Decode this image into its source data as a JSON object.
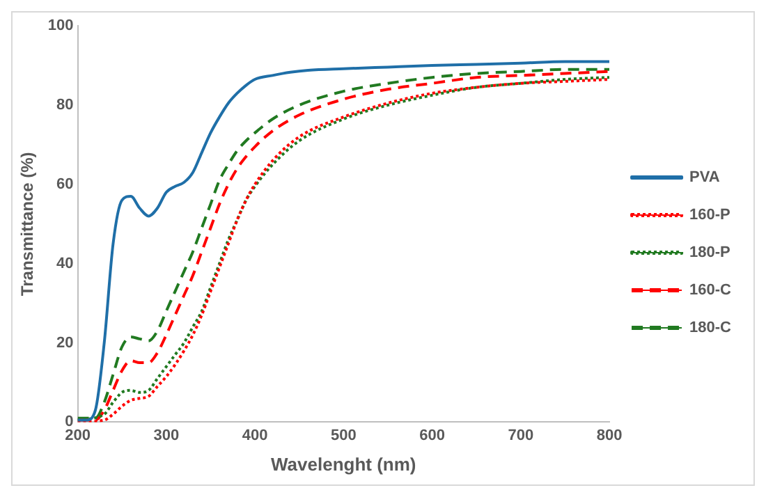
{
  "chart_data": {
    "type": "line",
    "xlabel": "Wavelenght (nm)",
    "ylabel": "Transmittance (%)",
    "xlim": [
      200,
      800
    ],
    "xticks": [
      200,
      300,
      400,
      500,
      600,
      700,
      800
    ],
    "ylim": [
      0,
      100
    ],
    "yticks": [
      0,
      20,
      40,
      60,
      80,
      100
    ],
    "grid": false,
    "legend": "right",
    "marker": "none",
    "series": [
      {
        "name": "PVA",
        "color": "#1f6fa8",
        "line_style": "solid",
        "x": [
          200,
          210,
          220,
          230,
          240,
          250,
          260,
          270,
          280,
          290,
          300,
          310,
          320,
          330,
          340,
          350,
          360,
          370,
          380,
          390,
          400,
          420,
          440,
          460,
          500,
          550,
          600,
          650,
          700,
          750,
          800
        ],
        "values": [
          0.5,
          0.5,
          3,
          20,
          45,
          56,
          57,
          54,
          52,
          54,
          58,
          59.5,
          60.5,
          63,
          68,
          73,
          77,
          80.5,
          83,
          85,
          86.5,
          87.5,
          88.3,
          88.8,
          89.2,
          89.6,
          90,
          90.3,
          90.6,
          91,
          91
        ]
      },
      {
        "name": "160-P",
        "color": "#ff0000",
        "line_style": "dotted",
        "x": [
          200,
          230,
          240,
          250,
          260,
          270,
          280,
          290,
          300,
          310,
          320,
          330,
          340,
          350,
          360,
          370,
          380,
          390,
          400,
          420,
          450,
          500,
          550,
          600,
          650,
          700,
          750,
          800
        ],
        "values": [
          0,
          0.5,
          2,
          4,
          5.5,
          6,
          6.5,
          9,
          11.5,
          14.5,
          18,
          22,
          27,
          33,
          39,
          45,
          51,
          56,
          60,
          66,
          72,
          77,
          80.5,
          83,
          84.5,
          85.5,
          86,
          86.5
        ]
      },
      {
        "name": "180-P",
        "color": "#217a21",
        "line_style": "dotted",
        "x": [
          200,
          230,
          240,
          250,
          260,
          270,
          280,
          290,
          300,
          310,
          320,
          330,
          340,
          350,
          360,
          370,
          380,
          390,
          400,
          420,
          450,
          500,
          550,
          600,
          650,
          700,
          750,
          800
        ],
        "values": [
          0.5,
          2,
          5,
          7.5,
          8,
          7.5,
          8,
          11,
          14,
          17,
          20,
          24,
          28,
          34,
          40,
          46,
          51,
          56,
          59.5,
          65,
          71,
          76.5,
          80,
          82.5,
          84.5,
          85.5,
          86.5,
          87
        ]
      },
      {
        "name": "160-C",
        "color": "#ff0000",
        "line_style": "dashed",
        "x": [
          200,
          220,
          230,
          240,
          250,
          260,
          270,
          280,
          290,
          300,
          310,
          320,
          330,
          340,
          350,
          360,
          370,
          380,
          390,
          400,
          420,
          450,
          500,
          550,
          600,
          650,
          700,
          750,
          800
        ],
        "values": [
          0.5,
          0.5,
          3,
          8,
          13,
          15.5,
          15,
          15,
          17.5,
          22,
          27,
          32,
          37,
          43,
          49,
          55,
          60,
          64,
          67,
          69.5,
          73.5,
          77.5,
          81.5,
          84,
          85.5,
          87,
          87.5,
          88,
          88.5
        ]
      },
      {
        "name": "180-C",
        "color": "#217a21",
        "line_style": "dashed",
        "x": [
          200,
          220,
          230,
          240,
          250,
          260,
          270,
          280,
          290,
          300,
          310,
          320,
          330,
          340,
          350,
          360,
          370,
          380,
          390,
          400,
          420,
          450,
          500,
          550,
          600,
          650,
          700,
          750,
          800
        ],
        "values": [
          1,
          1,
          5,
          12,
          19,
          21.5,
          21,
          20.5,
          23,
          28,
          33,
          38,
          43,
          49,
          55,
          61,
          65,
          68.5,
          71,
          73,
          76.5,
          80,
          83.5,
          85.5,
          87,
          88,
          88.5,
          89,
          89
        ]
      }
    ]
  }
}
